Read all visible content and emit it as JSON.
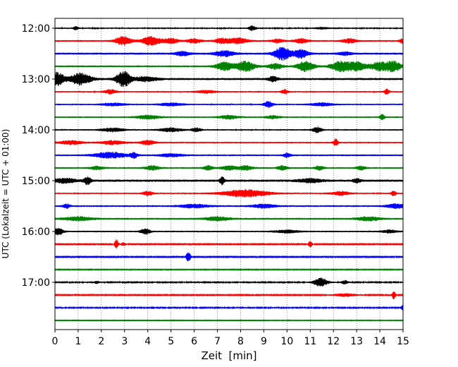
{
  "chart_data": {
    "type": "line",
    "title": "",
    "xlabel": "Zeit  [min]",
    "ylabel": "UTC (Lokalzeit = UTC + 01:00)",
    "xlim": [
      0,
      15
    ],
    "x_ticks": [
      0,
      1,
      2,
      3,
      4,
      5,
      6,
      7,
      8,
      9,
      10,
      11,
      12,
      13,
      14,
      15
    ],
    "x_tick_labels": [
      "0",
      "1",
      "2",
      "3",
      "4",
      "5",
      "6",
      "7",
      "8",
      "9",
      "10",
      "11",
      "12",
      "13",
      "14",
      "15"
    ],
    "vertical_grid": true,
    "trace_interval_minutes": 15,
    "y_tick_labels": [
      {
        "trace": 0,
        "label": "12:00"
      },
      {
        "trace": 4,
        "label": "13:00"
      },
      {
        "trace": 8,
        "label": "14:00"
      },
      {
        "trace": 12,
        "label": "15:00"
      },
      {
        "trace": 16,
        "label": "16:00"
      },
      {
        "trace": 20,
        "label": "17:00"
      }
    ],
    "color_cycle": [
      "#000000",
      "#ff0000",
      "#0000ff",
      "#008000"
    ],
    "traces": [
      {
        "start": "12:00",
        "color": "#000000",
        "noise": 0.9,
        "events": [
          [
            0.9,
            2.5,
            0.1
          ],
          [
            8.5,
            3.5,
            0.15
          ],
          [
            11.5,
            1.2,
            0.3
          ]
        ]
      },
      {
        "start": "12:15",
        "color": "#ff0000",
        "noise": 1.2,
        "events": [
          [
            2.95,
            6,
            0.35
          ],
          [
            4.15,
            6,
            0.4
          ],
          [
            5.0,
            3.5,
            0.3
          ],
          [
            6.0,
            3,
            0.3
          ],
          [
            7.2,
            3.5,
            0.3
          ],
          [
            7.9,
            4,
            0.4
          ],
          [
            9.6,
            2.5,
            0.25
          ],
          [
            10.6,
            3,
            0.3
          ],
          [
            12.7,
            3,
            0.3
          ],
          [
            14.95,
            3,
            0.1
          ]
        ]
      },
      {
        "start": "12:30",
        "color": "#0000ff",
        "noise": 1.4,
        "events": [
          [
            5.5,
            3,
            0.3
          ],
          [
            7.3,
            4,
            0.4
          ],
          [
            9.8,
            9,
            0.35
          ],
          [
            10.6,
            6,
            0.3
          ],
          [
            12.5,
            2,
            0.3
          ]
        ]
      },
      {
        "start": "12:45",
        "color": "#008000",
        "noise": 1.3,
        "events": [
          [
            7.3,
            6,
            0.35
          ],
          [
            8.2,
            7,
            0.4
          ],
          [
            9.5,
            4,
            0.3
          ],
          [
            10.8,
            7,
            0.35
          ],
          [
            12.3,
            7,
            0.4
          ],
          [
            13.0,
            6,
            0.4
          ],
          [
            14.0,
            6,
            0.4
          ],
          [
            14.6,
            7,
            0.3
          ]
        ]
      },
      {
        "start": "13:00",
        "color": "#000000",
        "noise": 1.5,
        "events": [
          [
            0.1,
            9,
            0.3
          ],
          [
            1.1,
            8,
            0.45
          ],
          [
            2.95,
            11,
            0.3
          ],
          [
            3.9,
            3,
            0.5
          ],
          [
            9.4,
            3.5,
            0.2
          ]
        ]
      },
      {
        "start": "13:15",
        "color": "#ff0000",
        "noise": 1.0,
        "events": [
          [
            2.4,
            3,
            0.25
          ],
          [
            6.5,
            2,
            0.4
          ],
          [
            9.9,
            3,
            0.15
          ],
          [
            14.3,
            4,
            0.1
          ]
        ]
      },
      {
        "start": "13:30",
        "color": "#0000ff",
        "noise": 1.0,
        "events": [
          [
            2.5,
            2,
            0.5
          ],
          [
            5.0,
            2,
            0.5
          ],
          [
            9.2,
            4,
            0.2
          ],
          [
            11.5,
            2,
            0.5
          ]
        ]
      },
      {
        "start": "13:45",
        "color": "#008000",
        "noise": 1.1,
        "events": [
          [
            4.0,
            2.5,
            0.5
          ],
          [
            7.5,
            2.5,
            0.4
          ],
          [
            9.4,
            2,
            0.3
          ],
          [
            14.1,
            4,
            0.1
          ]
        ]
      },
      {
        "start": "14:00",
        "color": "#000000",
        "noise": 1.0,
        "events": [
          [
            2.5,
            2.5,
            0.5
          ],
          [
            5.0,
            2.5,
            0.5
          ],
          [
            6.1,
            3,
            0.2
          ],
          [
            11.3,
            4,
            0.2
          ]
        ]
      },
      {
        "start": "14:15",
        "color": "#ff0000",
        "noise": 1.1,
        "events": [
          [
            0.7,
            2.5,
            0.5
          ],
          [
            2.5,
            2.5,
            0.5
          ],
          [
            4.0,
            3,
            0.3
          ],
          [
            12.1,
            5,
            0.1
          ]
        ]
      },
      {
        "start": "14:30",
        "color": "#0000ff",
        "noise": 1.2,
        "events": [
          [
            2.4,
            4,
            0.7
          ],
          [
            3.4,
            4,
            0.15
          ],
          [
            5.0,
            2,
            0.5
          ],
          [
            10.0,
            3,
            0.15
          ]
        ]
      },
      {
        "start": "14:45",
        "color": "#008000",
        "noise": 1.2,
        "events": [
          [
            1.8,
            2,
            0.3
          ],
          [
            4.2,
            3,
            0.3
          ],
          [
            6.6,
            3,
            0.2
          ],
          [
            7.5,
            3,
            0.3
          ],
          [
            8.2,
            3,
            0.3
          ],
          [
            9.8,
            3,
            0.2
          ],
          [
            11.4,
            2.5,
            0.2
          ],
          [
            13.2,
            2.5,
            0.2
          ]
        ]
      },
      {
        "start": "15:00",
        "color": "#000000",
        "noise": 1.6,
        "events": [
          [
            0.4,
            3,
            0.5
          ],
          [
            1.4,
            5,
            0.15
          ],
          [
            7.2,
            5,
            0.1
          ],
          [
            11.0,
            2.5,
            0.5
          ],
          [
            13.0,
            3,
            0.15
          ]
        ]
      },
      {
        "start": "15:15",
        "color": "#ff0000",
        "noise": 1.0,
        "events": [
          [
            4.0,
            3,
            0.2
          ],
          [
            8.2,
            5,
            1.0
          ],
          [
            12.3,
            2.5,
            0.4
          ],
          [
            14.6,
            4,
            0.1
          ]
        ]
      },
      {
        "start": "15:30",
        "color": "#0000ff",
        "noise": 1.2,
        "events": [
          [
            0.5,
            3,
            0.15
          ],
          [
            6.0,
            2.5,
            0.6
          ],
          [
            9.0,
            2.5,
            0.5
          ],
          [
            14.7,
            3,
            0.4
          ]
        ]
      },
      {
        "start": "15:45",
        "color": "#008000",
        "noise": 1.3,
        "events": [
          [
            1.0,
            2.5,
            0.6
          ],
          [
            7.0,
            2.5,
            0.5
          ],
          [
            13.5,
            2.5,
            0.5
          ]
        ]
      },
      {
        "start": "16:00",
        "color": "#000000",
        "noise": 1.1,
        "events": [
          [
            0.15,
            5,
            0.2
          ],
          [
            3.9,
            4,
            0.2
          ],
          [
            10.0,
            2,
            0.5
          ],
          [
            14.4,
            2,
            0.3
          ]
        ]
      },
      {
        "start": "16:15",
        "color": "#ff0000",
        "noise": 0.7,
        "events": [
          [
            2.65,
            7,
            0.08
          ],
          [
            2.95,
            2.5,
            0.1
          ],
          [
            11.0,
            5,
            0.08
          ]
        ]
      },
      {
        "start": "16:30",
        "color": "#0000ff",
        "noise": 0.7,
        "events": [
          [
            5.75,
            7,
            0.1
          ]
        ]
      },
      {
        "start": "16:45",
        "color": "#008000",
        "noise": 0.6,
        "events": []
      },
      {
        "start": "17:00",
        "color": "#000000",
        "noise": 0.8,
        "events": [
          [
            1.8,
            2,
            0.1
          ],
          [
            11.45,
            6,
            0.3
          ],
          [
            12.5,
            2.5,
            0.15
          ]
        ]
      },
      {
        "start": "17:15",
        "color": "#ff0000",
        "noise": 0.7,
        "events": [
          [
            12.5,
            2,
            0.5
          ],
          [
            14.6,
            6,
            0.08
          ]
        ]
      },
      {
        "start": "17:30",
        "color": "#0000ff",
        "noise": 0.8,
        "events": [
          [
            15.0,
            3,
            0.1
          ]
        ]
      },
      {
        "start": "17:45",
        "color": "#008000",
        "noise": 0.5,
        "events": []
      }
    ]
  }
}
